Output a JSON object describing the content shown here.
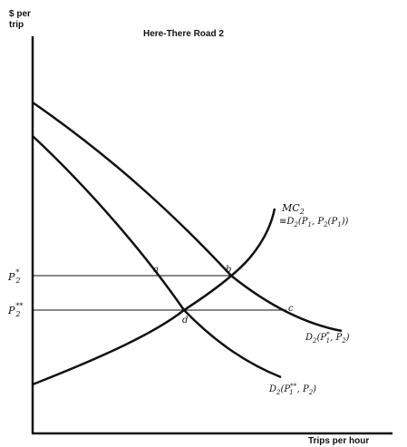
{
  "title": "Here-There Road 2",
  "axis": {
    "y_line1": "$ per",
    "y_line2": "trip",
    "x": "Trips per hour"
  },
  "prices": {
    "p_star": "P",
    "p_star_sub": "2",
    "p_star_sup": "*",
    "p_dstar": "P",
    "p_dstar_sub": "2",
    "p_dstar_sup": "**"
  },
  "points": {
    "a": "a",
    "b": "b",
    "c": "c",
    "d": "d"
  },
  "curves": {
    "mc": {
      "name": "MC",
      "sub": "2",
      "eq": "≡D",
      "eq_sub": "2",
      "eq_args": "(P",
      "eq_args_sub1": "1",
      "eq_args_mid": ", P",
      "eq_args_sub2": "2",
      "eq_args_mid2": "(P",
      "eq_args_sub3": "1",
      "eq_args_end": "))"
    },
    "d_star": {
      "name": "D",
      "sub": "2",
      "args_open": "(P",
      "args_sub1": "1",
      "args_sup1": "*",
      "args_mid": ", P",
      "args_sub2": "2",
      "args_close": ")"
    },
    "d_dstar": {
      "name": "D",
      "sub": "2",
      "args_open": "(P",
      "args_sub1": "1",
      "args_sup1": "**",
      "args_mid": ", P",
      "args_sub2": "2",
      "args_close": ")"
    }
  },
  "colors": {
    "ink": "#111111",
    "background": "#ffffff"
  }
}
